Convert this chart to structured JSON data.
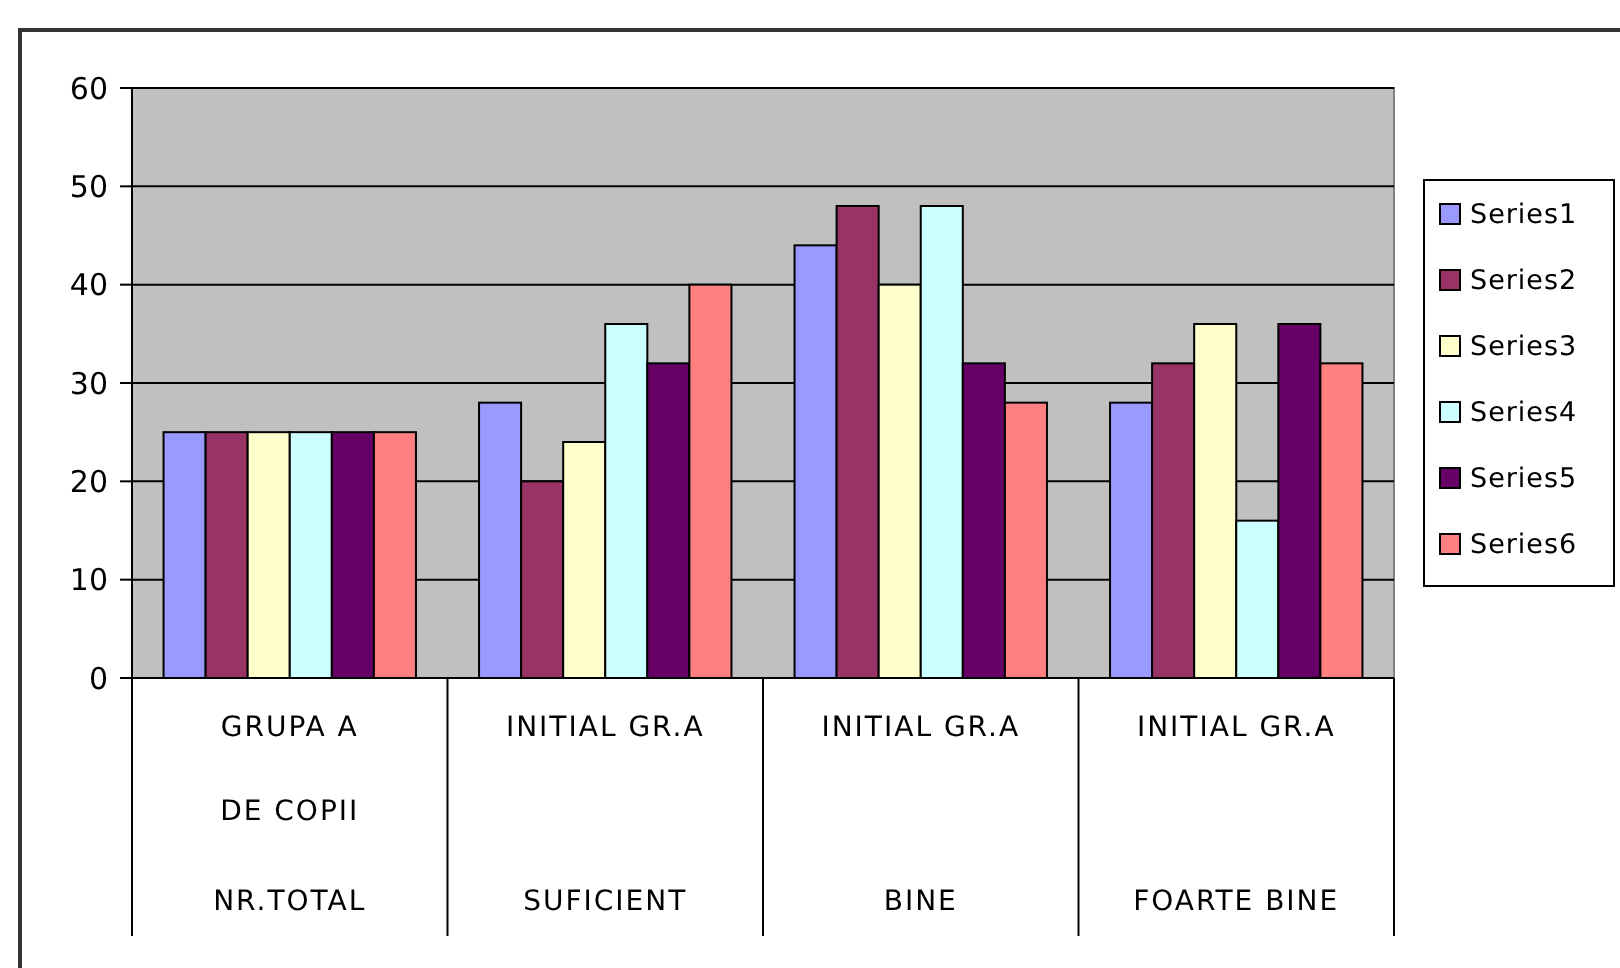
{
  "chart_data": {
    "type": "bar",
    "categories": [
      "GRUPA A\nDE COPII\nNR.TOTAL",
      "INITIAL GR.A\nSUFICIENT",
      "INITIAL GR.A\nBINE",
      "INITIAL GR.A\nFOARTE BINE"
    ],
    "series": [
      {
        "name": "Series1",
        "color": "#9999ff",
        "values": [
          25,
          28,
          44,
          28
        ]
      },
      {
        "name": "Series2",
        "color": "#993366",
        "values": [
          25,
          20,
          48,
          32
        ]
      },
      {
        "name": "Series3",
        "color": "#ffffcc",
        "values": [
          25,
          24,
          40,
          36
        ]
      },
      {
        "name": "Series4",
        "color": "#ccffff",
        "values": [
          25,
          36,
          48,
          16
        ]
      },
      {
        "name": "Series5",
        "color": "#660066",
        "values": [
          25,
          32,
          32,
          36
        ]
      },
      {
        "name": "Series6",
        "color": "#ff8080",
        "values": [
          25,
          40,
          28,
          32
        ]
      }
    ],
    "ylim": [
      0,
      60
    ],
    "yticks": [
      0,
      10,
      20,
      30,
      40,
      50,
      60
    ],
    "grid": "y",
    "legend": "right"
  }
}
